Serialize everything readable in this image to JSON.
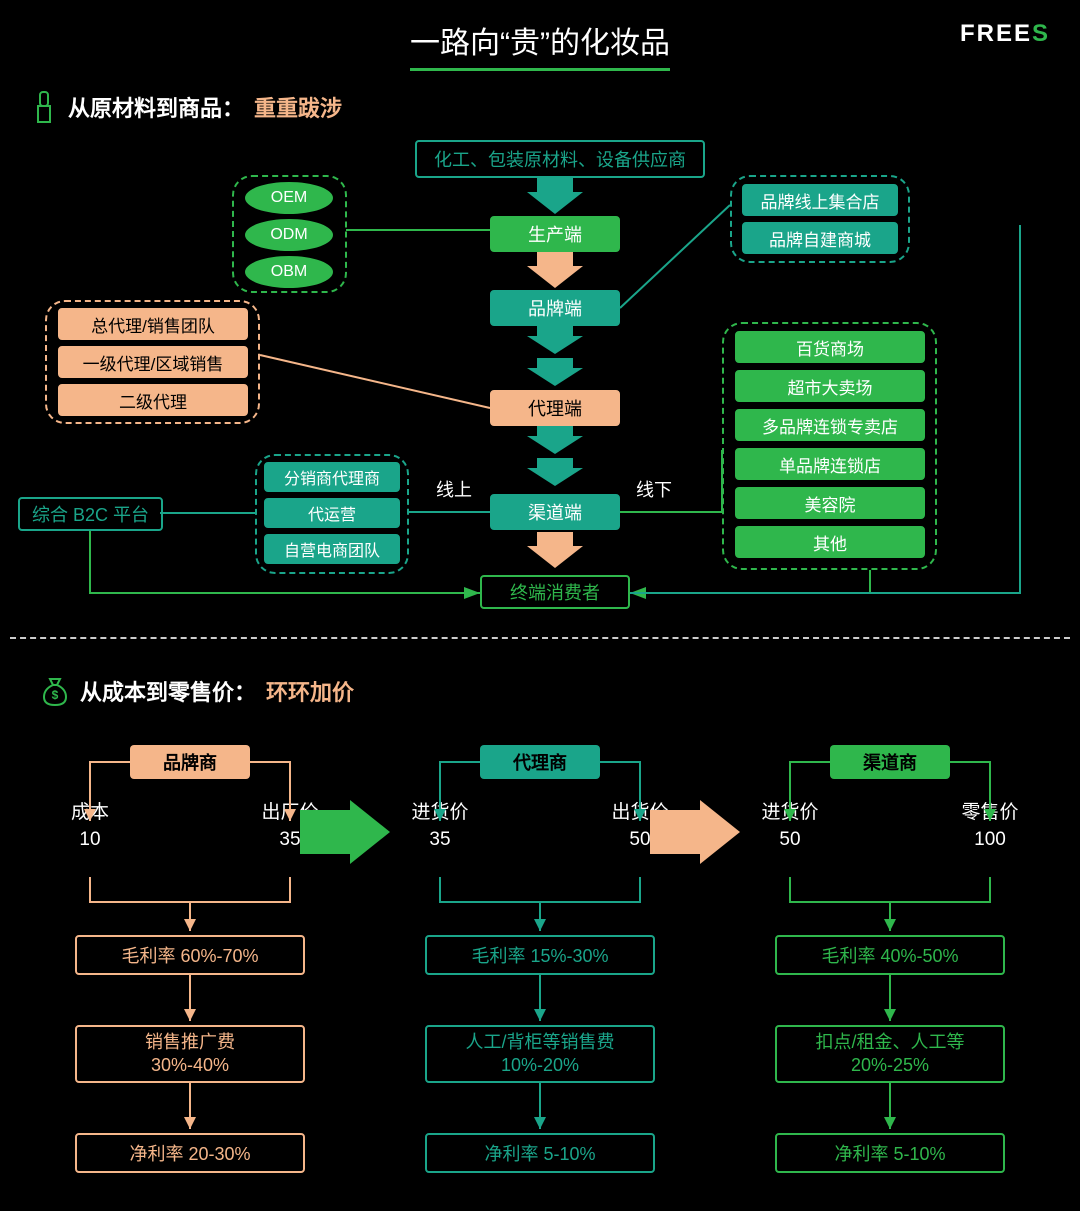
{
  "title": "一路向“贵”的化妆品",
  "logo_prefix": "FREE",
  "logo_suffix": "S",
  "section1_a": "从原材料到商品：",
  "section1_b": "重重跋涉",
  "section2_a": "从成本到零售价：",
  "section2_b": "环环加价",
  "colors": {
    "bg": "#000000",
    "green": "#2fb74c",
    "teal": "#1aa58a",
    "orange": "#f5b68a",
    "white": "#ffffff"
  },
  "flow": {
    "top_supplier": "化工、包装原材料、设备供应商",
    "stages": [
      "生产端",
      "品牌端",
      "代理端",
      "渠道端",
      "终端消费者"
    ],
    "oem_group": [
      "OEM",
      "ODM",
      "OBM"
    ],
    "brand_online": [
      "品牌线上集合店",
      "品牌自建商城"
    ],
    "agent_group": [
      "总代理/销售团队",
      "一级代理/区域销售",
      "二级代理"
    ],
    "online_group": [
      "分销商代理商",
      "代运营",
      "自营电商团队"
    ],
    "b2c": "综合 B2C 平台",
    "offline_group": [
      "百货商场",
      "超市大卖场",
      "多品牌连锁专卖店",
      "单品牌连锁店",
      "美容院",
      "其他"
    ],
    "online_label": "线上",
    "offline_label": "线下",
    "arrow_colors": [
      "#1aa58a",
      "#f5b68a",
      "#1aa58a",
      "#1aa58a",
      "#f5b68a"
    ]
  },
  "cost": {
    "stages": [
      {
        "name": "品牌商",
        "color": "orange",
        "left_label": "成本",
        "left_val": "10",
        "right_label": "出厂价",
        "right_val": "35",
        "gross": "毛利率 60%-70%",
        "expense": "销售推广费\n30%-40%",
        "net": "净利率 20-30%"
      },
      {
        "name": "代理商",
        "color": "teal",
        "left_label": "进货价",
        "left_val": "35",
        "right_label": "出货价",
        "right_val": "50",
        "gross": "毛利率 15%-30%",
        "expense": "人工/背柜等销售费\n10%-20%",
        "net": "净利率 5-10%"
      },
      {
        "name": "渠道商",
        "color": "green",
        "left_label": "进货价",
        "left_val": "50",
        "right_label": "零售价",
        "right_val": "100",
        "gross": "毛利率 40%-50%",
        "expense": "扣点/租金、人工等\n20%-25%",
        "net": "净利率 5-10%"
      }
    ],
    "big_arrow_colors": [
      "#2fb74c",
      "#f5b68a"
    ]
  }
}
